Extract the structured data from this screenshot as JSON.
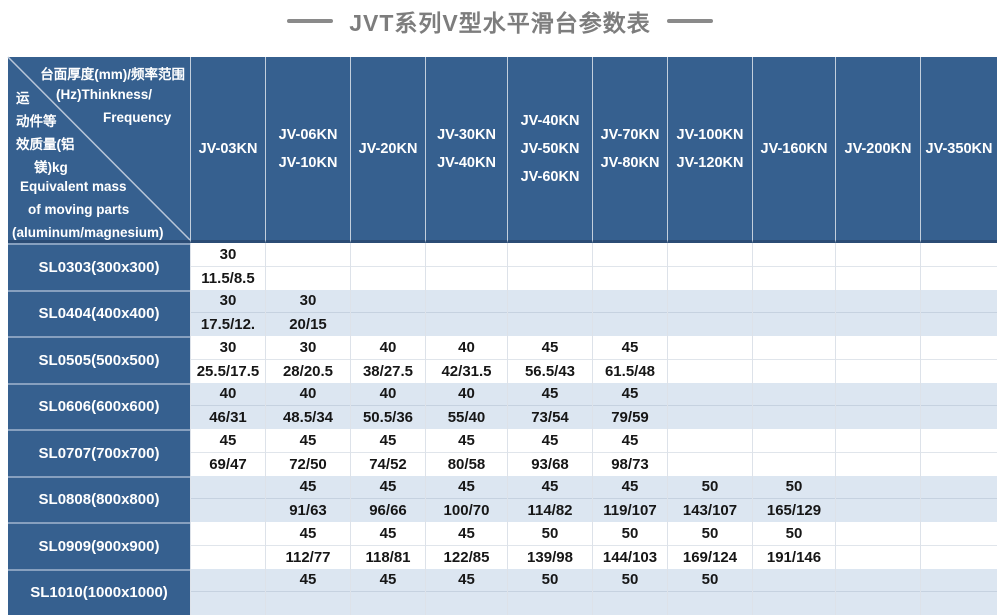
{
  "title": "JVT系列V型水平滑台参数表",
  "colors": {
    "header_blue": "#36608f",
    "row_alt_blue": "#dce6f1",
    "title_gray": "#7d7d7d",
    "value_text": "#161616"
  },
  "corner": {
    "line_thickness_cn": "台面厚度(mm)/频率范围",
    "line_hz": "(Hz)Thinkness/",
    "line_frequency": "Frequency",
    "line_mass_cn_1": "运",
    "line_mass_cn_2": "动件等",
    "line_mass_cn_3": "效质量(铝",
    "line_mass_cn_4": "镁)kg",
    "line_mass_en_1": "Equivalent mass",
    "line_mass_en_2": "of moving parts",
    "line_mass_en_3": "(aluminum/magnesium)"
  },
  "columns": [
    [
      "JV-03KN"
    ],
    [
      "JV-06KN",
      "JV-10KN"
    ],
    [
      "JV-20KN"
    ],
    [
      "JV-30KN",
      "JV-40KN"
    ],
    [
      "JV-40KN",
      "JV-50KN",
      "JV-60KN"
    ],
    [
      "JV-70KN",
      "JV-80KN"
    ],
    [
      "JV-100KN",
      "JV-120KN"
    ],
    [
      "JV-160KN"
    ],
    [
      "JV-200KN"
    ],
    [
      "JV-350KN"
    ]
  ],
  "rows": [
    {
      "model": "SL0303(300x300)",
      "cells": [
        [
          "30",
          "11.5/8.5"
        ],
        null,
        null,
        null,
        null,
        null,
        null,
        null,
        null,
        null
      ]
    },
    {
      "model": "SL0404(400x400)",
      "cells": [
        [
          "30",
          "17.5/12."
        ],
        [
          "30",
          "20/15"
        ],
        null,
        null,
        null,
        null,
        null,
        null,
        null,
        null
      ]
    },
    {
      "model": "SL0505(500x500)",
      "cells": [
        [
          "30",
          "25.5/17.5"
        ],
        [
          "30",
          "28/20.5"
        ],
        [
          "40",
          "38/27.5"
        ],
        [
          "40",
          "42/31.5"
        ],
        [
          "45",
          "56.5/43"
        ],
        [
          "45",
          "61.5/48"
        ],
        null,
        null,
        null,
        null
      ]
    },
    {
      "model": "SL0606(600x600)",
      "cells": [
        [
          "40",
          "46/31"
        ],
        [
          "40",
          "48.5/34"
        ],
        [
          "40",
          "50.5/36"
        ],
        [
          "40",
          "55/40"
        ],
        [
          "45",
          "73/54"
        ],
        [
          "45",
          "79/59"
        ],
        null,
        null,
        null,
        null
      ]
    },
    {
      "model": "SL0707(700x700)",
      "cells": [
        [
          "45",
          "69/47"
        ],
        [
          "45",
          "72/50"
        ],
        [
          "45",
          "74/52"
        ],
        [
          "45",
          "80/58"
        ],
        [
          "45",
          "93/68"
        ],
        [
          "45",
          "98/73"
        ],
        null,
        null,
        null,
        null
      ]
    },
    {
      "model": "SL0808(800x800)",
      "cells": [
        null,
        [
          "45",
          "91/63"
        ],
        [
          "45",
          "96/66"
        ],
        [
          "45",
          "100/70"
        ],
        [
          "45",
          "114/82"
        ],
        [
          "45",
          "119/107"
        ],
        [
          "50",
          "143/107"
        ],
        [
          "50",
          "165/129"
        ],
        null,
        null
      ]
    },
    {
      "model": "SL0909(900x900)",
      "cells": [
        null,
        [
          "45",
          "112/77"
        ],
        [
          "45",
          "118/81"
        ],
        [
          "45",
          "122/85"
        ],
        [
          "50",
          "139/98"
        ],
        [
          "50",
          "144/103"
        ],
        [
          "50",
          "169/124"
        ],
        [
          "50",
          "191/146"
        ],
        null,
        null
      ]
    },
    {
      "model": "SL1010(1000x1000)",
      "cells": [
        null,
        [
          "45",
          ""
        ],
        [
          "45",
          ""
        ],
        [
          "45",
          ""
        ],
        [
          "50",
          ""
        ],
        [
          "50",
          ""
        ],
        [
          "50",
          ""
        ],
        null,
        null,
        null
      ]
    }
  ]
}
